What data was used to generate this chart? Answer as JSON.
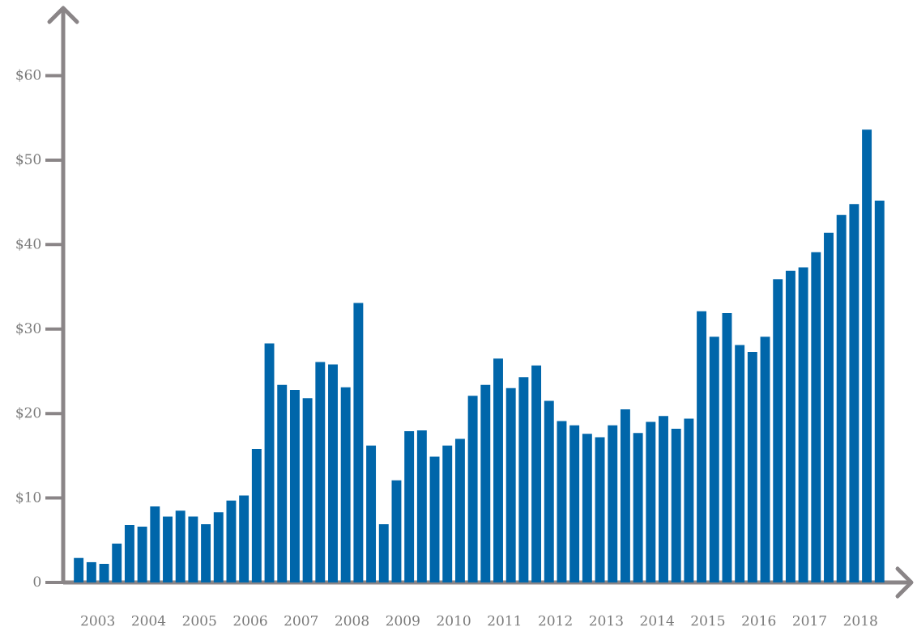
{
  "chart_data": {
    "type": "bar",
    "categories": [
      "2003",
      "2004",
      "2005",
      "2006",
      "2007",
      "2008",
      "2009",
      "2010",
      "2011",
      "2012",
      "2013",
      "2014",
      "2015",
      "2016",
      "2017",
      "2018"
    ],
    "series": [
      {
        "color": "#0066aa",
        "values": [
          2.9,
          6.8,
          8.5,
          9.7,
          23.4,
          25.8,
          6.9,
          14.9,
          23.4,
          25.7,
          17.6,
          17.7,
          19.4,
          28.1,
          36.9,
          43.5
        ]
      },
      {
        "color": "#0066aa",
        "values": [
          2.4,
          6.6,
          7.8,
          10.3,
          22.8,
          23.1,
          12.1,
          16.2,
          26.5,
          21.5,
          17.2,
          19.0,
          32.1,
          27.3,
          37.3,
          44.8
        ]
      },
      {
        "color": "#0066aa",
        "values": [
          2.2,
          9.0,
          6.9,
          15.8,
          21.8,
          33.1,
          17.9,
          17.0,
          23.0,
          19.1,
          18.6,
          19.7,
          29.1,
          29.1,
          39.1,
          53.6
        ]
      },
      {
        "color": "#0066aa",
        "values": [
          4.6,
          7.8,
          8.3,
          28.3,
          26.1,
          16.2,
          18.0,
          22.1,
          24.3,
          18.6,
          20.5,
          18.2,
          31.9,
          35.9,
          41.4,
          45.2
        ]
      }
    ],
    "ylim": [
      0,
      68
    ],
    "yticks": [
      0,
      {
        "value": 10,
        "label": "$10"
      },
      {
        "value": 20,
        "label": "$20"
      },
      {
        "value": 30,
        "label": "$30"
      },
      {
        "value": 40,
        "label": "$40"
      },
      {
        "value": 50,
        "label": "$50"
      },
      {
        "value": 60,
        "label": "$60"
      }
    ],
    "grid": false
  }
}
